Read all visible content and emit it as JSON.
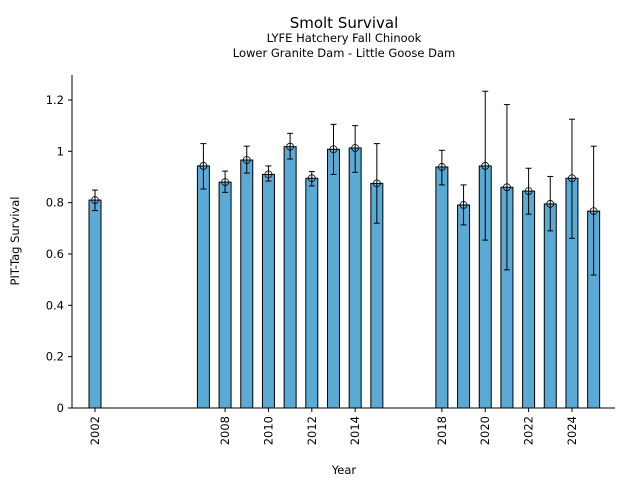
{
  "chart_data": {
    "type": "bar",
    "title": "Smolt Survival",
    "subtitle": "LYFE Hatchery Fall Chinook",
    "subtitle2": "Lower Granite Dam - Little Goose Dam",
    "xlabel": "Year",
    "ylabel": "PIT-Tag Survival",
    "xlim": [
      2000.94,
      2026
    ],
    "ylim": [
      0,
      1.3
    ],
    "yticks": [
      0,
      0.2,
      0.4,
      0.6,
      0.8,
      1,
      1.2
    ],
    "ytick_labels": [
      "0",
      "0.2",
      "0.4",
      "0.6",
      "0.8",
      "1",
      "1.2"
    ],
    "xticks": [
      2002,
      2008,
      2010,
      2012,
      2014,
      2018,
      2020,
      2022,
      2024
    ],
    "xtick_labels": [
      "2002",
      "2008",
      "2010",
      "2012",
      "2014",
      "2018",
      "2020",
      "2022",
      "2024"
    ],
    "grid": false,
    "bar_color": "#5aaad5",
    "x": [
      2002,
      2007,
      2008,
      2009,
      2010,
      2011,
      2012,
      2013,
      2014,
      2015,
      2018,
      2019,
      2020,
      2021,
      2022,
      2023,
      2024,
      2025
    ],
    "values": [
      0.81,
      0.943,
      0.88,
      0.966,
      0.91,
      1.018,
      0.895,
      1.008,
      1.013,
      0.875,
      0.939,
      0.791,
      0.943,
      0.86,
      0.845,
      0.795,
      0.895,
      0.767
    ],
    "err_low": [
      0.769,
      0.853,
      0.84,
      0.915,
      0.884,
      0.97,
      0.865,
      0.91,
      0.918,
      0.72,
      0.869,
      0.713,
      0.654,
      0.538,
      0.755,
      0.69,
      0.661,
      0.518
    ],
    "err_high": [
      0.849,
      1.03,
      0.923,
      1.02,
      0.943,
      1.07,
      0.921,
      1.105,
      1.1,
      1.03,
      1.004,
      0.869,
      1.234,
      1.182,
      0.934,
      0.902,
      1.125,
      1.02
    ]
  }
}
